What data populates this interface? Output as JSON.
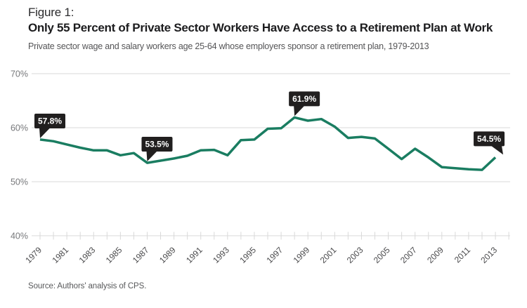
{
  "header": {
    "figure_label": "Figure 1:",
    "title": "Only 55 Percent of Private Sector Workers Have Access to a Retirement Plan at Work",
    "subtitle": "Private sector wage and salary workers age 25-64 whose employers sponsor a retirement plan, 1979-2013"
  },
  "footer": {
    "source": "Source: Authors' analysis of CPS."
  },
  "colors": {
    "line": "#1a7d61",
    "grid": "#d9d9d9",
    "tick": "#d9d9d9",
    "y_label": "#77787b",
    "x_label": "#4b4b4d",
    "callout_bg": "#211f1f",
    "callout_text": "#ffffff"
  },
  "chart_data": {
    "type": "line",
    "title": "Only 55 Percent of Private Sector Workers Have Access to a Retirement Plan at Work",
    "subtitle": "Private sector wage and salary workers age 25-64 whose employers sponsor a retirement plan, 1979-2013",
    "x": [
      1979,
      1980,
      1981,
      1982,
      1983,
      1984,
      1985,
      1986,
      1987,
      1988,
      1989,
      1990,
      1991,
      1992,
      1993,
      1994,
      1995,
      1996,
      1997,
      1998,
      1999,
      2000,
      2001,
      2002,
      2003,
      2004,
      2005,
      2006,
      2007,
      2008,
      2009,
      2010,
      2011,
      2012,
      2013
    ],
    "values": [
      57.8,
      57.5,
      56.9,
      56.3,
      55.8,
      55.8,
      54.9,
      55.3,
      53.5,
      53.9,
      54.3,
      54.8,
      55.8,
      55.9,
      54.9,
      57.7,
      57.8,
      59.8,
      59.9,
      61.9,
      61.3,
      61.6,
      60.2,
      58.1,
      58.3,
      58.0,
      56.1,
      54.2,
      56.1,
      54.5,
      52.7,
      52.5,
      52.3,
      52.2,
      54.5
    ],
    "ylim": [
      40,
      70
    ],
    "yticks": [
      40,
      50,
      60,
      70
    ],
    "ytick_suffix": "%",
    "xticks_labeled": [
      1979,
      1981,
      1983,
      1985,
      1987,
      1989,
      1991,
      1993,
      1995,
      1997,
      1999,
      2001,
      2003,
      2005,
      2007,
      2009,
      2011,
      2013
    ],
    "grid": "horizontal",
    "legend": "none",
    "annotations": [
      {
        "x": 1979,
        "y": 57.8,
        "label": "57.8%",
        "tail": "down-left"
      },
      {
        "x": 1987,
        "y": 53.5,
        "label": "53.5%",
        "tail": "down-left"
      },
      {
        "x": 1998,
        "y": 61.9,
        "label": "61.9%",
        "tail": "down-left"
      },
      {
        "x": 2013,
        "y": 54.5,
        "label": "54.5%",
        "tail": "down-right"
      }
    ],
    "source": "Source: Authors' analysis of CPS."
  }
}
